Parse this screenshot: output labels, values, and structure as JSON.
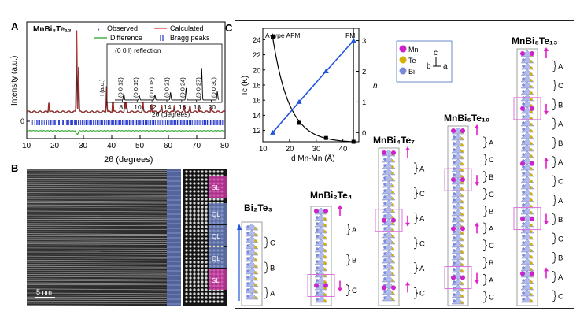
{
  "panel_labels": {
    "a": "A",
    "b": "B",
    "c": "C"
  },
  "panelA": {
    "compound": "MnBi₈Te₁₃",
    "legend": [
      "Observed",
      "Calculated",
      "Difference",
      "Bragg peaks"
    ],
    "ylabel": "Intensity (a.u.)",
    "xlabel": "2θ (degrees)",
    "xticks": [
      "10",
      "20",
      "30",
      "40",
      "50",
      "60",
      "70",
      "80"
    ],
    "y_zero": "0",
    "inset": {
      "title": "(0 0 l) reflection",
      "ylabel": "I (a.u.)",
      "xlabel": "2θ (degrees)",
      "xticks": [
        "8",
        "10",
        "12",
        "14",
        "16",
        "18",
        "20"
      ],
      "peaks": [
        "(0 0 12)",
        "(0 0 15)",
        "(0 0 18)",
        "(0 0 21)",
        "(0 0 24)",
        "(0 0 27)",
        "(0 0 30)"
      ]
    }
  },
  "panelB": {
    "scale_bar": "5 nm",
    "layer_labels": [
      "SL",
      "QL",
      "QL",
      "QL",
      "SL"
    ]
  },
  "panelC": {
    "chart_data": {
      "type": "line",
      "xlabel": "d Mn-Mn (Å)",
      "ylabel_left": "Tc (K)",
      "ylabel_right": "n",
      "xticks": [
        "10",
        "20",
        "30",
        "40"
      ],
      "yticks_left": [
        "12",
        "14",
        "16",
        "18",
        "20",
        "22",
        "24"
      ],
      "yticks_right": [
        "0",
        "1",
        "2",
        "3"
      ],
      "xlim": [
        10,
        46
      ],
      "ylim_left": [
        10.5,
        25.5
      ],
      "ylim_right": [
        -0.3,
        3.4
      ],
      "region_labels": [
        "A-type AFM",
        "FM"
      ],
      "series": [
        {
          "name": "Tc",
          "axis": "left",
          "x": [
            13.7,
            23.6,
            33.7,
            44
          ],
          "y": [
            24.3,
            13.0,
            11.0,
            10.5
          ]
        },
        {
          "name": "n",
          "axis": "right",
          "x": [
            13.7,
            23.6,
            33.7,
            44
          ],
          "y": [
            0,
            1,
            2,
            3
          ]
        }
      ]
    },
    "legend": [
      "Mn",
      "Te",
      "Bi"
    ],
    "axes_glyph": {
      "c": "c",
      "b": "b",
      "a": "a"
    },
    "structures": [
      {
        "name": "Bi₂Te₃",
        "stack": [
          "C",
          "B",
          "A"
        ]
      },
      {
        "name": "MnBi₂Te₄",
        "stack": [
          "A",
          "B",
          "C"
        ]
      },
      {
        "name": "MnBi₄Te₇",
        "stack": [
          "A",
          "C",
          "A",
          "C",
          "A",
          "C"
        ]
      },
      {
        "name": "MnBi₆Te₁₀",
        "stack": [
          "A",
          "C",
          "B",
          "C",
          "B",
          "A",
          "C",
          "B",
          "A",
          "C"
        ]
      },
      {
        "name": "MnBi₈Te₁₃",
        "stack": [
          "A",
          "C",
          "B",
          "A",
          "B",
          "A",
          "C",
          "A",
          "B",
          "C",
          "B",
          "A",
          "C"
        ]
      }
    ],
    "colors": {
      "mn": "#cc22cc",
      "te": "#d4b000",
      "bi": "#7a8ad8",
      "tc_line": "#000000",
      "n_line": "#2255dd",
      "arrow": "#e020c8",
      "box": "#e070e0"
    }
  }
}
